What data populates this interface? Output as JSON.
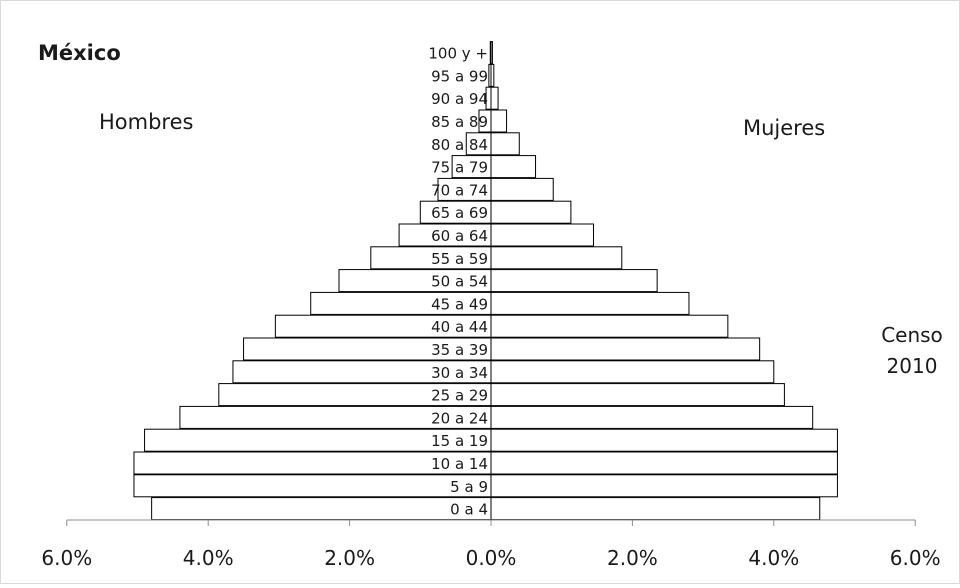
{
  "chart_data": {
    "type": "bar",
    "orientation": "horizontal",
    "title": "México",
    "left_label": "Hombres",
    "right_label": "Mujeres",
    "note": [
      "Censo",
      "2010"
    ],
    "categories": [
      "0 a 4",
      "5 a 9",
      "10 a 14",
      "15 a 19",
      "20 a 24",
      "25 a 29",
      "30 a 34",
      "35 a 39",
      "40 a 44",
      "45 a 49",
      "50 a 54",
      "55 a 59",
      "60 a 64",
      "65 a 69",
      "70 a 74",
      "75 a 79",
      "80 a 84",
      "85 a 89",
      "90 a 94",
      "95 a 99",
      "100 y +"
    ],
    "series": [
      {
        "name": "Hombres",
        "values": [
          4.8,
          5.05,
          5.05,
          4.9,
          4.4,
          3.85,
          3.65,
          3.5,
          3.05,
          2.55,
          2.15,
          1.7,
          1.3,
          1.0,
          0.75,
          0.55,
          0.35,
          0.17,
          0.07,
          0.03,
          0.01
        ]
      },
      {
        "name": "Mujeres",
        "values": [
          4.65,
          4.9,
          4.9,
          4.9,
          4.55,
          4.15,
          4.0,
          3.8,
          3.35,
          2.8,
          2.35,
          1.85,
          1.45,
          1.13,
          0.88,
          0.63,
          0.4,
          0.22,
          0.1,
          0.04,
          0.02
        ]
      }
    ],
    "ticks": [
      "6.0%",
      "4.0%",
      "2.0%",
      "0.0%",
      "2.0%",
      "4.0%",
      "6.0%"
    ],
    "xlim": [
      -6,
      6
    ],
    "grid": false,
    "legend": "none"
  }
}
